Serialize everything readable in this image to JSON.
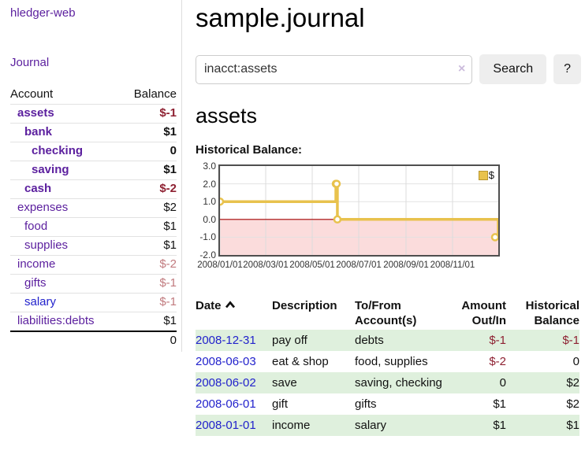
{
  "colors": {
    "link_purple": "#5b1f9e",
    "link_blue": "#2222cc",
    "negative_strong": "#8e2132",
    "negative_soft": "#c17a7e",
    "row_green": "#dff0dd",
    "chart_line_gold": "#e8c24d",
    "chart_negative_fill": "#fbdcdc",
    "chart_zero_line": "#a40000"
  },
  "sidebar": {
    "brand": "hledger-web",
    "journal_link": "Journal",
    "accounts_table": {
      "headers": {
        "account": "Account",
        "balance": "Balance"
      },
      "rows": [
        {
          "label": "assets",
          "indent": 1,
          "bold": true,
          "balance": "$-1",
          "neg": "strong",
          "link": "purple"
        },
        {
          "label": "bank",
          "indent": 2,
          "bold": true,
          "balance": "$1",
          "neg": "none",
          "link": "purple"
        },
        {
          "label": "checking",
          "indent": 3,
          "bold": true,
          "balance": "0",
          "neg": "none",
          "link": "purple"
        },
        {
          "label": "saving",
          "indent": 3,
          "bold": true,
          "balance": "$1",
          "neg": "none",
          "link": "purple"
        },
        {
          "label": "cash",
          "indent": 2,
          "bold": true,
          "balance": "$-2",
          "neg": "strong",
          "link": "purple"
        },
        {
          "label": "expenses",
          "indent": 1,
          "bold": false,
          "balance": "$2",
          "neg": "none",
          "link": "purple"
        },
        {
          "label": "food",
          "indent": 2,
          "bold": false,
          "balance": "$1",
          "neg": "none",
          "link": "purple"
        },
        {
          "label": "supplies",
          "indent": 2,
          "bold": false,
          "balance": "$1",
          "neg": "none",
          "link": "purple"
        },
        {
          "label": "income",
          "indent": 1,
          "bold": false,
          "balance": "$-2",
          "neg": "soft",
          "link": "purple"
        },
        {
          "label": "gifts",
          "indent": 2,
          "bold": false,
          "balance": "$-1",
          "neg": "soft",
          "link": "purple"
        },
        {
          "label": "salary",
          "indent": 2,
          "bold": false,
          "balance": "$-1",
          "neg": "soft",
          "link": "blue"
        },
        {
          "label": "liabilities:debts",
          "indent": 1,
          "bold": false,
          "balance": "$1",
          "neg": "none",
          "link": "purple"
        }
      ],
      "total": "0"
    }
  },
  "main": {
    "title": "sample.journal",
    "search": {
      "value": "inacct:assets",
      "clear": "×",
      "button": "Search",
      "help": "?"
    },
    "account_heading": "assets",
    "chart_title": "Historical Balance:"
  },
  "chart_data": {
    "type": "line",
    "step": true,
    "title": "Historical Balance:",
    "series": [
      {
        "name": "$",
        "x": [
          "2008-01-01",
          "2008-06-01",
          "2008-06-02",
          "2008-06-03",
          "2008-12-31"
        ],
        "values": [
          1,
          2,
          2,
          0,
          -1
        ]
      }
    ],
    "ylim": [
      -2,
      3
    ],
    "ytick_labels": [
      "3.0",
      "2.0",
      "1.0",
      "0.0",
      "-1.0",
      "-2.0"
    ],
    "ytick_values": [
      3,
      2,
      1,
      0,
      -1,
      -2
    ],
    "xtick_labels": [
      "2008/01/01",
      "2008/03/01",
      "2008/05/01",
      "2008/07/01",
      "2008/09/01",
      "2008/11/01"
    ],
    "xtick_months": [
      1,
      3,
      5,
      7,
      9,
      11
    ],
    "legend": {
      "label": "$",
      "position": "top-right"
    },
    "grid": true,
    "negative_region_shaded": true
  },
  "register": {
    "headers": {
      "date": "Date",
      "description": "Description",
      "accounts": "To/From Account(s)",
      "amount": "Amount Out/In",
      "balance": "Historical Balance"
    },
    "sort": {
      "column": "date",
      "direction": "ascending"
    },
    "rows": [
      {
        "date": "2008-12-31",
        "description": "pay off",
        "accounts": "debts",
        "amount": "$-1",
        "amount_negative": true,
        "balance": "$-1",
        "balance_negative": true,
        "shaded": true
      },
      {
        "date": "2008-06-03",
        "description": "eat & shop",
        "accounts": "food, supplies",
        "amount": "$-2",
        "amount_negative": true,
        "balance": "0",
        "balance_negative": false,
        "shaded": false
      },
      {
        "date": "2008-06-02",
        "description": "save",
        "accounts": "saving, checking",
        "amount": "0",
        "amount_negative": false,
        "balance": "$2",
        "balance_negative": false,
        "shaded": true
      },
      {
        "date": "2008-06-01",
        "description": "gift",
        "accounts": "gifts",
        "amount": "$1",
        "amount_negative": false,
        "balance": "$2",
        "balance_negative": false,
        "shaded": false
      },
      {
        "date": "2008-01-01",
        "description": "income",
        "accounts": "salary",
        "amount": "$1",
        "amount_negative": false,
        "balance": "$1",
        "balance_negative": false,
        "shaded": true
      }
    ]
  }
}
